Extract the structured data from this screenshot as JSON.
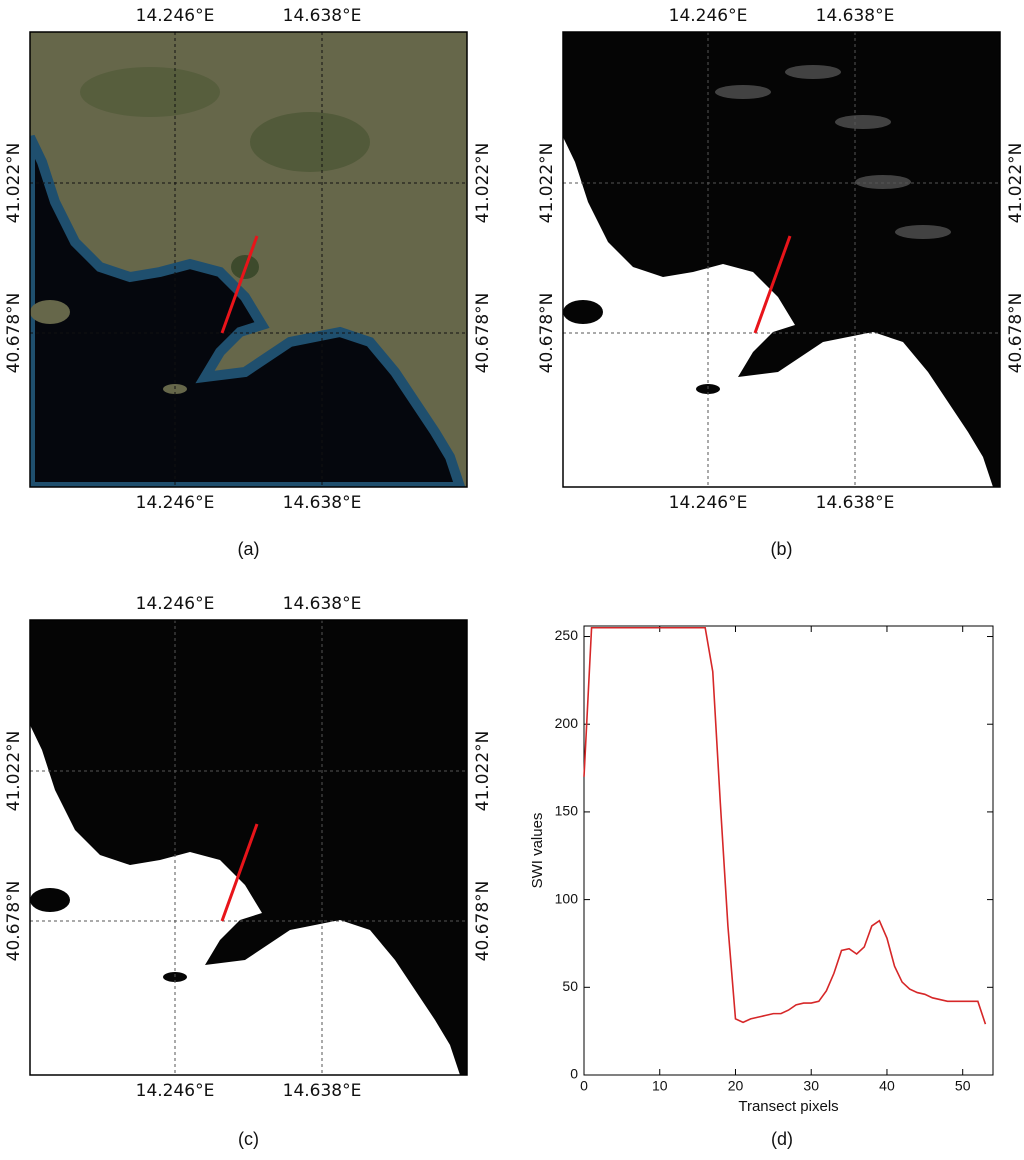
{
  "maps": [
    {
      "lon_labels": [
        "14.246°E",
        "14.638°E"
      ],
      "lat_labels": [
        "41.022°N",
        "40.678°N"
      ],
      "caption": "(a)"
    },
    {
      "lon_labels": [
        "14.246°E",
        "14.638°E"
      ],
      "lat_labels": [
        "41.022°N",
        "40.678°N"
      ],
      "caption": "(b)"
    },
    {
      "lon_labels": [
        "14.246°E",
        "14.638°E"
      ],
      "lat_labels": [
        "41.022°N",
        "40.678°N"
      ],
      "caption": "(c)"
    }
  ],
  "chart_data": {
    "type": "line",
    "caption": "(d)",
    "xlabel": "Transect pixels",
    "ylabel": "SWI values",
    "color": "#d62728",
    "x": [
      0,
      1,
      2,
      3,
      4,
      5,
      6,
      7,
      8,
      9,
      10,
      11,
      12,
      13,
      14,
      15,
      16,
      17,
      18,
      19,
      20,
      21,
      22,
      23,
      24,
      25,
      26,
      27,
      28,
      29,
      30,
      31,
      32,
      33,
      34,
      35,
      36,
      37,
      38,
      39,
      40,
      41,
      42,
      43,
      44,
      45,
      46,
      47,
      48,
      49,
      50,
      51,
      52,
      53
    ],
    "values": [
      170,
      255,
      255,
      255,
      255,
      255,
      255,
      255,
      255,
      255,
      255,
      255,
      255,
      255,
      255,
      255,
      255,
      230,
      155,
      85,
      32,
      30,
      32,
      33,
      34,
      35,
      35,
      37,
      40,
      41,
      41,
      42,
      48,
      58,
      71,
      72,
      69,
      73,
      85,
      88,
      78,
      62,
      53,
      49,
      47,
      46,
      44,
      43,
      42,
      42,
      42,
      42,
      42,
      29
    ],
    "xlim": [
      0,
      54
    ],
    "ylim": [
      0,
      256
    ],
    "xticks": [
      0,
      10,
      20,
      30,
      40,
      50
    ],
    "yticks": [
      0,
      50,
      100,
      150,
      200,
      250
    ]
  }
}
